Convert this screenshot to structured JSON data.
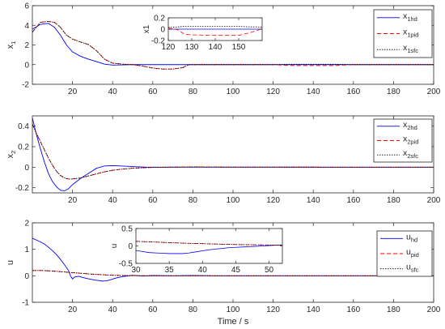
{
  "chart_data": [
    {
      "type": "line",
      "ylabel": "x",
      "ylabel_sub": "1",
      "xlim": [
        0,
        200
      ],
      "ylim": [
        -2,
        6
      ],
      "xticks": [
        20,
        40,
        60,
        80,
        100,
        120,
        140,
        160,
        180,
        200
      ],
      "yticks": [
        -2,
        0,
        2,
        4,
        6
      ],
      "legend_position": "top-right",
      "series": [
        {
          "name": "x",
          "sub": "1hd",
          "color": "#0000ff",
          "dash": "solid",
          "x": [
            0,
            4,
            8,
            11,
            14,
            17,
            20,
            24,
            28,
            32,
            36,
            40,
            45,
            50,
            60,
            80,
            100,
            120,
            140,
            160,
            180,
            200
          ],
          "y": [
            3.6,
            4.1,
            4.2,
            3.8,
            3.0,
            2.0,
            1.3,
            0.85,
            0.55,
            0.3,
            0.05,
            -0.05,
            -0.03,
            0,
            0,
            0,
            0,
            0,
            0,
            0,
            0,
            0
          ]
        },
        {
          "name": "x",
          "sub": "1pid",
          "color": "#ff0000",
          "dash": "5,3",
          "x": [
            0,
            4,
            8,
            11,
            14,
            17,
            20,
            24,
            28,
            32,
            36,
            40,
            45,
            50,
            55,
            60,
            65,
            70,
            75,
            78,
            80,
            85,
            90,
            100,
            110,
            120,
            125,
            130,
            140,
            150,
            155,
            160,
            180,
            200
          ],
          "y": [
            3.3,
            4.3,
            4.4,
            4.3,
            3.8,
            3.0,
            2.6,
            2.3,
            2.05,
            1.4,
            0.55,
            0.15,
            0.05,
            0,
            -0.15,
            -0.35,
            -0.45,
            -0.45,
            -0.3,
            0,
            0,
            0,
            0,
            0,
            0,
            0,
            -0.05,
            -0.1,
            -0.1,
            -0.1,
            -0.05,
            0,
            0,
            0
          ]
        },
        {
          "name": "x",
          "sub": "1sfc",
          "color": "#000000",
          "dash": "1.5,1.5",
          "x": [
            0,
            4,
            8,
            11,
            14,
            17,
            20,
            24,
            28,
            32,
            36,
            40,
            45,
            50,
            55,
            60,
            65,
            70,
            75,
            78,
            80,
            85,
            90,
            100,
            110,
            120,
            125,
            130,
            140,
            150,
            155,
            160,
            180,
            200
          ],
          "y": [
            3.3,
            4.3,
            4.4,
            4.3,
            3.8,
            3.0,
            2.6,
            2.3,
            2.05,
            1.4,
            0.55,
            0.15,
            0.05,
            0,
            -0.15,
            -0.35,
            -0.45,
            -0.45,
            -0.3,
            0,
            0,
            0,
            0,
            0,
            0,
            0,
            0.02,
            0.04,
            0.04,
            0.04,
            0.02,
            0,
            0,
            0
          ]
        }
      ],
      "inset": {
        "ylabel": "x1",
        "xlim": [
          120,
          160
        ],
        "ylim": [
          -0.2,
          0.2
        ],
        "xticks": [
          120,
          130,
          140,
          150
        ],
        "yticks": [
          -0.2,
          0,
          0.2
        ],
        "series": [
          {
            "color": "#0000ff",
            "dash": "solid",
            "x": [
              120,
              160
            ],
            "y": [
              0,
              0
            ]
          },
          {
            "color": "#ff0000",
            "dash": "5,3",
            "x": [
              120,
              124,
              127,
              130,
              140,
              150,
              155,
              158,
              160
            ],
            "y": [
              0.02,
              -0.01,
              -0.09,
              -0.1,
              -0.11,
              -0.11,
              -0.06,
              -0.02,
              0.01
            ]
          },
          {
            "color": "#000000",
            "dash": "1.5,1.5",
            "x": [
              120,
              124,
              127,
              130,
              140,
              150,
              155,
              158,
              160
            ],
            "y": [
              0.03,
              0.04,
              0.05,
              0.05,
              0.05,
              0.05,
              0.04,
              0.04,
              0.03
            ]
          }
        ]
      }
    },
    {
      "type": "line",
      "ylabel": "x",
      "ylabel_sub": "2",
      "xlim": [
        0,
        200
      ],
      "ylim": [
        -0.25,
        0.5
      ],
      "xticks": [
        20,
        40,
        60,
        80,
        100,
        120,
        140,
        160,
        180,
        200
      ],
      "yticks": [
        -0.2,
        0,
        0.2,
        0.4
      ],
      "ytick_labels": [
        "-0.2",
        "0",
        "0.2",
        "0.4"
      ],
      "legend_position": "top-right",
      "series": [
        {
          "name": "x",
          "sub": "2hd",
          "color": "#0000ff",
          "dash": "solid",
          "x": [
            0,
            2,
            4,
            6,
            8,
            10,
            12,
            14,
            16,
            18,
            20,
            24,
            28,
            32,
            36,
            40,
            44,
            48,
            52,
            56,
            60,
            70,
            80,
            200
          ],
          "y": [
            0.48,
            0.32,
            0.18,
            0.05,
            -0.06,
            -0.14,
            -0.19,
            -0.225,
            -0.23,
            -0.21,
            -0.17,
            -0.11,
            -0.06,
            -0.01,
            0.012,
            0.015,
            0.012,
            0.008,
            0.004,
            0.001,
            0,
            0,
            0,
            0
          ]
        },
        {
          "name": "x",
          "sub": "2pid",
          "color": "#ff0000",
          "dash": "5,3",
          "x": [
            0,
            2,
            4,
            6,
            8,
            10,
            12,
            14,
            16,
            18,
            20,
            24,
            28,
            32,
            36,
            40,
            44,
            50,
            56,
            60,
            70,
            80,
            90,
            100,
            200
          ],
          "y": [
            0.42,
            0.33,
            0.25,
            0.17,
            0.09,
            0.02,
            -0.04,
            -0.08,
            -0.105,
            -0.115,
            -0.115,
            -0.105,
            -0.085,
            -0.065,
            -0.045,
            -0.03,
            -0.02,
            -0.01,
            -0.005,
            -0.002,
            0.001,
            0.003,
            0.002,
            0.001,
            0
          ]
        },
        {
          "name": "x",
          "sub": "2sfc",
          "color": "#000000",
          "dash": "1.5,1.5",
          "x": [
            0,
            2,
            4,
            6,
            8,
            10,
            12,
            14,
            16,
            18,
            20,
            24,
            28,
            32,
            36,
            40,
            44,
            50,
            56,
            60,
            70,
            80,
            90,
            100,
            200
          ],
          "y": [
            0.42,
            0.33,
            0.25,
            0.17,
            0.09,
            0.02,
            -0.04,
            -0.08,
            -0.105,
            -0.115,
            -0.115,
            -0.105,
            -0.085,
            -0.065,
            -0.045,
            -0.03,
            -0.02,
            -0.01,
            -0.005,
            -0.002,
            0.001,
            0.003,
            0.002,
            0.001,
            0
          ]
        }
      ]
    },
    {
      "type": "line",
      "ylabel": "u",
      "xlabel": "Time / s",
      "xlim": [
        0,
        200
      ],
      "ylim": [
        -1,
        2
      ],
      "xticks": [
        20,
        40,
        60,
        80,
        100,
        120,
        140,
        160,
        180,
        200
      ],
      "yticks": [
        -1,
        0,
        1,
        2
      ],
      "legend_position": "top-right",
      "series": [
        {
          "name": "u",
          "sub": "hd",
          "color": "#0000ff",
          "dash": "solid",
          "x": [
            0,
            2,
            4,
            6,
            8,
            10,
            12,
            14,
            16,
            18,
            19,
            20,
            21,
            23,
            25,
            27,
            29,
            31,
            33,
            35,
            37,
            39,
            41,
            43,
            45,
            47,
            50,
            55,
            60,
            70,
            80,
            90,
            100,
            120,
            140,
            160,
            180,
            200
          ],
          "y": [
            1.42,
            1.35,
            1.28,
            1.2,
            1.08,
            0.95,
            0.8,
            0.62,
            0.42,
            0.2,
            0.0,
            -0.12,
            -0.05,
            -0.02,
            -0.06,
            -0.1,
            -0.13,
            -0.16,
            -0.18,
            -0.2,
            -0.19,
            -0.15,
            -0.1,
            -0.06,
            -0.03,
            -0.01,
            0.02,
            -0.01,
            0.01,
            0,
            0.01,
            0,
            0,
            0,
            0,
            0,
            0,
            0
          ]
        },
        {
          "name": "u",
          "sub": "pid",
          "color": "#ff0000",
          "dash": "5,3",
          "x": [
            0,
            5,
            10,
            15,
            20,
            25,
            30,
            35,
            40,
            45,
            50,
            60,
            70,
            80,
            100,
            120,
            140,
            160,
            180,
            200
          ],
          "y": [
            0.2,
            0.2,
            0.18,
            0.15,
            0.12,
            0.09,
            0.06,
            0.04,
            0.02,
            0.01,
            0.005,
            0,
            0,
            0,
            0,
            0,
            0,
            0,
            0,
            0
          ]
        },
        {
          "name": "u",
          "sub": "sfc",
          "color": "#000000",
          "dash": "1.5,1.5",
          "x": [
            0,
            5,
            10,
            15,
            20,
            25,
            30,
            35,
            40,
            45,
            50,
            60,
            70,
            80,
            100,
            120,
            140,
            160,
            180,
            200
          ],
          "y": [
            0.2,
            0.2,
            0.18,
            0.15,
            0.12,
            0.09,
            0.06,
            0.04,
            0.02,
            0.01,
            0.005,
            0,
            0,
            0,
            0,
            0,
            0,
            0,
            0,
            0
          ]
        }
      ],
      "inset": {
        "ylabel": "u",
        "xlim": [
          30,
          52
        ],
        "ylim": [
          -0.5,
          0.5
        ],
        "xticks": [
          30,
          35,
          40,
          45,
          50
        ],
        "yticks": [
          -0.5,
          0,
          0.5
        ],
        "series": [
          {
            "color": "#0000ff",
            "dash": "solid",
            "x": [
              29,
              30,
              31,
              32,
              33,
              34,
              35,
              36,
              37,
              38,
              39,
              40,
              41,
              42,
              43,
              44,
              45,
              46,
              47,
              48,
              49,
              50,
              51,
              52
            ],
            "y": [
              -0.08,
              -0.13,
              -0.16,
              -0.19,
              -0.2,
              -0.21,
              -0.22,
              -0.22,
              -0.22,
              -0.2,
              -0.17,
              -0.14,
              -0.11,
              -0.09,
              -0.07,
              -0.05,
              -0.04,
              -0.03,
              -0.02,
              -0.01,
              0.0,
              0.01,
              0.02,
              0.03
            ]
          },
          {
            "color": "#ff0000",
            "dash": "5,3",
            "x": [
              29,
              33,
              37,
              41,
              45,
              49,
              52
            ],
            "y": [
              0.14,
              0.11,
              0.08,
              0.06,
              0.04,
              0.03,
              0.02
            ]
          },
          {
            "color": "#000000",
            "dash": "1.5,1.5",
            "x": [
              29,
              33,
              37,
              41,
              45,
              49,
              52
            ],
            "y": [
              0.14,
              0.11,
              0.08,
              0.06,
              0.04,
              0.03,
              0.02
            ]
          }
        ]
      }
    }
  ]
}
